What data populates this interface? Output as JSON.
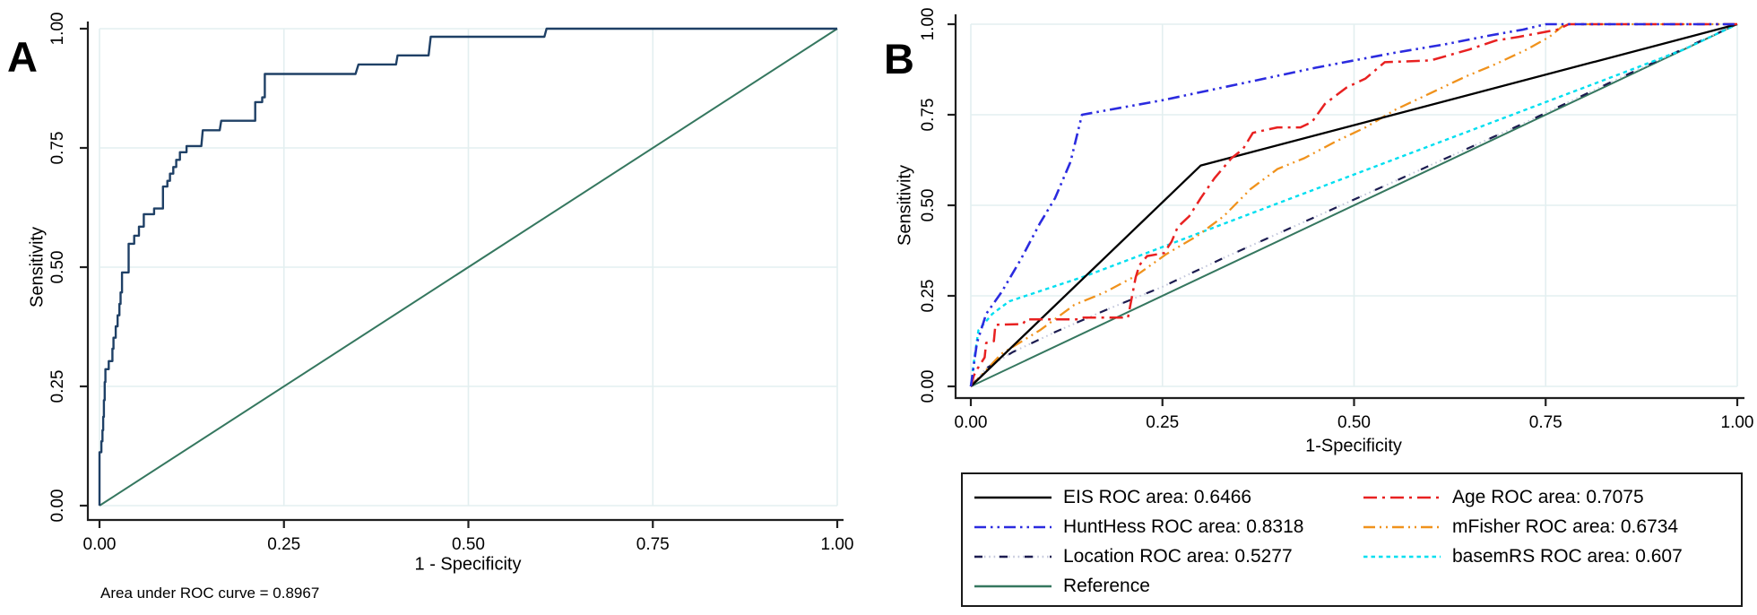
{
  "panels": {
    "a": {
      "letter": "A",
      "y_title": "Sensitivity",
      "x_title": "1 - Specificity",
      "caption": "Area under ROC curve = 0.8967"
    },
    "b": {
      "letter": "B",
      "y_title": "Sensitivity",
      "x_title": "1-Specificity"
    }
  },
  "colors": {
    "background": "#ffffff",
    "grid": "#e3eff0",
    "axis": "#1f1f1f",
    "text": "#000000",
    "panel_a_roc": "#1f4066",
    "reference": "#35775f",
    "eis": "#000000",
    "hunthess": "#2b2bdf",
    "age": "#e82121",
    "mfisher": "#f0921c",
    "location": "#1c1c50",
    "location_dots": "#c3c7db",
    "basemrs": "#00dff0"
  },
  "legend": {
    "entries": [
      {
        "series": "eis",
        "label": "EIS ROC area: 0.6466"
      },
      {
        "series": "age",
        "label": "Age ROC area: 0.7075"
      },
      {
        "series": "hunthess",
        "label": "HuntHess ROC area: 0.8318"
      },
      {
        "series": "mfisher",
        "label": "mFisher ROC area: 0.6734"
      },
      {
        "series": "location",
        "label": "Location ROC area: 0.5277"
      },
      {
        "series": "basemrs",
        "label": "basemRS ROC area: 0.607"
      },
      {
        "series": "reference",
        "label": "Reference"
      }
    ]
  },
  "chart_data": [
    {
      "panel": "A",
      "type": "line",
      "title": "",
      "xlabel": "1 - Specificity",
      "ylabel": "Sensitivity",
      "xlim": [
        0,
        1
      ],
      "ylim": [
        0,
        1
      ],
      "grid": true,
      "annotation": "Area under ROC curve = 0.8967",
      "auc": 0.8967,
      "x_ticks": [
        {
          "v": 0,
          "label": "0.00"
        },
        {
          "v": 0.25,
          "label": "0.25"
        },
        {
          "v": 0.5,
          "label": "0.50"
        },
        {
          "v": 0.75,
          "label": "0.75"
        },
        {
          "v": 1,
          "label": "1.00"
        }
      ],
      "y_ticks": [
        {
          "v": 0,
          "label": "0.00"
        },
        {
          "v": 0.25,
          "label": "0.25"
        },
        {
          "v": 0.5,
          "label": "0.50"
        },
        {
          "v": 0.75,
          "label": "0.75"
        },
        {
          "v": 1,
          "label": "1.00"
        }
      ],
      "series": [
        {
          "key": "reference",
          "name": "Reference",
          "strokes": [
            {
              "color": "#35775f",
              "width": 2,
              "dash": ""
            }
          ],
          "points": [
            [
              0,
              0
            ],
            [
              1,
              1
            ]
          ]
        },
        {
          "key": "roc",
          "name": "ROC curve",
          "auc": 0.8967,
          "strokes": [
            {
              "color": "#1f4066",
              "width": 2.4,
              "dash": ""
            }
          ],
          "points": [
            [
              0,
              0
            ],
            [
              0,
              0.112
            ],
            [
              0.0025,
              0.112
            ],
            [
              0.0025,
              0.135
            ],
            [
              0.004,
              0.135
            ],
            [
              0.004,
              0.158
            ],
            [
              0.005,
              0.158
            ],
            [
              0.005,
              0.186
            ],
            [
              0.006,
              0.186
            ],
            [
              0.006,
              0.221
            ],
            [
              0.007,
              0.221
            ],
            [
              0.007,
              0.259
            ],
            [
              0.008,
              0.259
            ],
            [
              0.008,
              0.286
            ],
            [
              0.0125,
              0.286
            ],
            [
              0.0125,
              0.303
            ],
            [
              0.0175,
              0.303
            ],
            [
              0.0175,
              0.329
            ],
            [
              0.019,
              0.329
            ],
            [
              0.019,
              0.352
            ],
            [
              0.022,
              0.352
            ],
            [
              0.022,
              0.376
            ],
            [
              0.0245,
              0.376
            ],
            [
              0.0245,
              0.399
            ],
            [
              0.027,
              0.399
            ],
            [
              0.027,
              0.423
            ],
            [
              0.0285,
              0.423
            ],
            [
              0.0285,
              0.447
            ],
            [
              0.0305,
              0.447
            ],
            [
              0.0305,
              0.489
            ],
            [
              0.0395,
              0.489
            ],
            [
              0.0395,
              0.549
            ],
            [
              0.047,
              0.549
            ],
            [
              0.047,
              0.566
            ],
            [
              0.0535,
              0.566
            ],
            [
              0.0535,
              0.585
            ],
            [
              0.06,
              0.585
            ],
            [
              0.06,
              0.611
            ],
            [
              0.074,
              0.611
            ],
            [
              0.074,
              0.623
            ],
            [
              0.086,
              0.623
            ],
            [
              0.086,
              0.669
            ],
            [
              0.092,
              0.669
            ],
            [
              0.092,
              0.681
            ],
            [
              0.0955,
              0.681
            ],
            [
              0.0955,
              0.696
            ],
            [
              0.1,
              0.696
            ],
            [
              0.1,
              0.71
            ],
            [
              0.104,
              0.71
            ],
            [
              0.104,
              0.725
            ],
            [
              0.109,
              0.725
            ],
            [
              0.109,
              0.741
            ],
            [
              0.118,
              0.741
            ],
            [
              0.118,
              0.754
            ],
            [
              0.138,
              0.754
            ],
            [
              0.14,
              0.787
            ],
            [
              0.163,
              0.787
            ],
            [
              0.165,
              0.807
            ],
            [
              0.211,
              0.807
            ],
            [
              0.211,
              0.846
            ],
            [
              0.2205,
              0.846
            ],
            [
              0.2205,
              0.856
            ],
            [
              0.224,
              0.856
            ],
            [
              0.224,
              0.905
            ],
            [
              0.347,
              0.905
            ],
            [
              0.351,
              0.925
            ],
            [
              0.402,
              0.925
            ],
            [
              0.404,
              0.944
            ],
            [
              0.446,
              0.944
            ],
            [
              0.449,
              0.983
            ],
            [
              0.603,
              0.983
            ],
            [
              0.606,
              1
            ],
            [
              1,
              1
            ]
          ]
        }
      ]
    },
    {
      "panel": "B",
      "type": "line",
      "title": "",
      "xlabel": "1-Specificity",
      "ylabel": "Sensitivity",
      "xlim": [
        0,
        1
      ],
      "ylim": [
        0,
        1
      ],
      "grid": true,
      "legend_position": "below",
      "x_ticks": [
        {
          "v": 0,
          "label": "0.00"
        },
        {
          "v": 0.25,
          "label": "0.25"
        },
        {
          "v": 0.5,
          "label": "0.50"
        },
        {
          "v": 0.75,
          "label": "0.75"
        },
        {
          "v": 1,
          "label": "1.00"
        }
      ],
      "y_ticks": [
        {
          "v": 0,
          "label": "0.00"
        },
        {
          "v": 0.25,
          "label": "0.25"
        },
        {
          "v": 0.5,
          "label": "0.50"
        },
        {
          "v": 0.75,
          "label": "0.75"
        },
        {
          "v": 1,
          "label": "1.00"
        }
      ],
      "series": [
        {
          "key": "reference",
          "name": "Reference",
          "strokes": [
            {
              "color": "#35775f",
              "width": 2,
              "dash": ""
            }
          ],
          "points": [
            [
              0,
              0
            ],
            [
              1,
              1
            ]
          ]
        },
        {
          "key": "location",
          "name": "Location",
          "auc": 0.5277,
          "strokes": [
            {
              "color": "#c3c7db",
              "width": 2,
              "dash": "1.6 3.8"
            },
            {
              "color": "#1c1c50",
              "width": 2.2,
              "dash": "9 19"
            }
          ],
          "points": [
            [
              0,
              0
            ],
            [
              0.02,
              0.05
            ],
            [
              0.055,
              0.095
            ],
            [
              0.11,
              0.15
            ],
            [
              0.175,
              0.21
            ],
            [
              0.25,
              0.275
            ],
            [
              0.33,
              0.355
            ],
            [
              0.42,
              0.44
            ],
            [
              0.52,
              0.535
            ],
            [
              0.62,
              0.63
            ],
            [
              0.72,
              0.725
            ],
            [
              0.85,
              0.855
            ],
            [
              1,
              1
            ]
          ]
        },
        {
          "key": "basemrs",
          "name": "basemRS",
          "auc": 0.607,
          "strokes": [
            {
              "color": "#00dff0",
              "width": 2.4,
              "dash": "4.5 4"
            }
          ],
          "points": [
            [
              0,
              0
            ],
            [
              0.005,
              0.085
            ],
            [
              0.01,
              0.155
            ],
            [
              0.028,
              0.2
            ],
            [
              0.05,
              0.235
            ],
            [
              0.15,
              0.305
            ],
            [
              0.25,
              0.385
            ],
            [
              0.35,
              0.465
            ],
            [
              0.45,
              0.545
            ],
            [
              0.55,
              0.625
            ],
            [
              0.65,
              0.705
            ],
            [
              0.75,
              0.785
            ],
            [
              0.85,
              0.865
            ],
            [
              0.93,
              0.93
            ],
            [
              1,
              1
            ]
          ]
        },
        {
          "key": "mfisher",
          "name": "mFisher",
          "auc": 0.6734,
          "strokes": [
            {
              "color": "#f0921c",
              "width": 2.3,
              "dash": "13 5 2 5 2 5"
            }
          ],
          "points": [
            [
              0,
              0
            ],
            [
              0.04,
              0.09
            ],
            [
              0.09,
              0.155
            ],
            [
              0.135,
              0.225
            ],
            [
              0.175,
              0.26
            ],
            [
              0.215,
              0.305
            ],
            [
              0.255,
              0.365
            ],
            [
              0.295,
              0.415
            ],
            [
              0.33,
              0.47
            ],
            [
              0.365,
              0.545
            ],
            [
              0.4,
              0.6
            ],
            [
              0.435,
              0.63
            ],
            [
              0.475,
              0.675
            ],
            [
              0.515,
              0.715
            ],
            [
              0.555,
              0.765
            ],
            [
              0.6,
              0.81
            ],
            [
              0.645,
              0.855
            ],
            [
              0.685,
              0.89
            ],
            [
              0.725,
              0.93
            ],
            [
              0.755,
              0.965
            ],
            [
              0.775,
              1
            ],
            [
              1,
              1
            ]
          ]
        },
        {
          "key": "eis",
          "name": "EIS",
          "auc": 0.6466,
          "strokes": [
            {
              "color": "#000000",
              "width": 2.3,
              "dash": ""
            }
          ],
          "points": [
            [
              0,
              0
            ],
            [
              0.3,
              0.61
            ],
            [
              1,
              1
            ]
          ]
        },
        {
          "key": "age",
          "name": "Age",
          "auc": 0.7075,
          "strokes": [
            {
              "color": "#e82121",
              "width": 2.5,
              "dash": "15 6 3 6"
            }
          ],
          "points": [
            [
              0,
              0
            ],
            [
              0.004,
              0.03
            ],
            [
              0.009,
              0.05
            ],
            [
              0.018,
              0.08
            ],
            [
              0.02,
              0.12
            ],
            [
              0.03,
              0.125
            ],
            [
              0.032,
              0.17
            ],
            [
              0.068,
              0.172
            ],
            [
              0.072,
              0.185
            ],
            [
              0.14,
              0.185
            ],
            [
              0.145,
              0.19
            ],
            [
              0.205,
              0.19
            ],
            [
              0.215,
              0.3
            ],
            [
              0.22,
              0.335
            ],
            [
              0.23,
              0.36
            ],
            [
              0.252,
              0.368
            ],
            [
              0.262,
              0.4
            ],
            [
              0.27,
              0.44
            ],
            [
              0.285,
              0.47
            ],
            [
              0.3,
              0.52
            ],
            [
              0.318,
              0.575
            ],
            [
              0.34,
              0.63
            ],
            [
              0.355,
              0.655
            ],
            [
              0.368,
              0.7
            ],
            [
              0.4,
              0.715
            ],
            [
              0.43,
              0.715
            ],
            [
              0.445,
              0.73
            ],
            [
              0.462,
              0.78
            ],
            [
              0.49,
              0.825
            ],
            [
              0.515,
              0.85
            ],
            [
              0.54,
              0.895
            ],
            [
              0.6,
              0.9
            ],
            [
              0.625,
              0.915
            ],
            [
              0.65,
              0.93
            ],
            [
              0.685,
              0.955
            ],
            [
              0.715,
              0.965
            ],
            [
              0.74,
              0.975
            ],
            [
              0.765,
              0.985
            ],
            [
              0.78,
              1
            ],
            [
              1,
              1
            ]
          ]
        },
        {
          "key": "hunthess",
          "name": "HuntHess",
          "auc": 0.8318,
          "strokes": [
            {
              "color": "#2b2bdf",
              "width": 2.6,
              "dash": "13 5 2.5 5 2.5 5"
            }
          ],
          "points": [
            [
              0,
              0
            ],
            [
              0.008,
              0.12
            ],
            [
              0.02,
              0.2
            ],
            [
              0.04,
              0.26
            ],
            [
              0.065,
              0.35
            ],
            [
              0.09,
              0.45
            ],
            [
              0.11,
              0.52
            ],
            [
              0.13,
              0.62
            ],
            [
              0.145,
              0.75
            ],
            [
              0.25,
              0.79
            ],
            [
              0.35,
              0.835
            ],
            [
              0.45,
              0.88
            ],
            [
              0.55,
              0.92
            ],
            [
              0.62,
              0.945
            ],
            [
              0.68,
              0.97
            ],
            [
              0.72,
              0.985
            ],
            [
              0.75,
              1
            ],
            [
              1,
              1
            ]
          ]
        }
      ]
    }
  ]
}
